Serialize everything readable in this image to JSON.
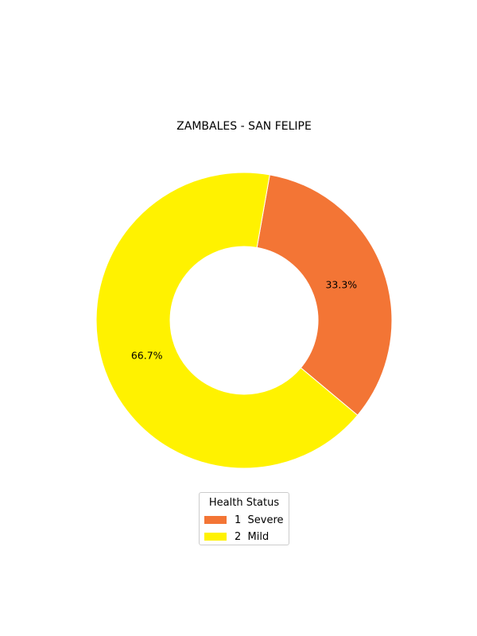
{
  "chart_data": {
    "type": "pie",
    "title": "ZAMBALES - SAN FELIPE",
    "donut": true,
    "slices": [
      {
        "label": "1  Severe",
        "value": 33.3,
        "display": "33.3%",
        "color": "#f37535"
      },
      {
        "label": "2  Mild",
        "value": 66.7,
        "display": "66.7%",
        "color": "#fff200"
      }
    ],
    "legend": {
      "title": "Health Status",
      "position": "bottom-center"
    }
  }
}
